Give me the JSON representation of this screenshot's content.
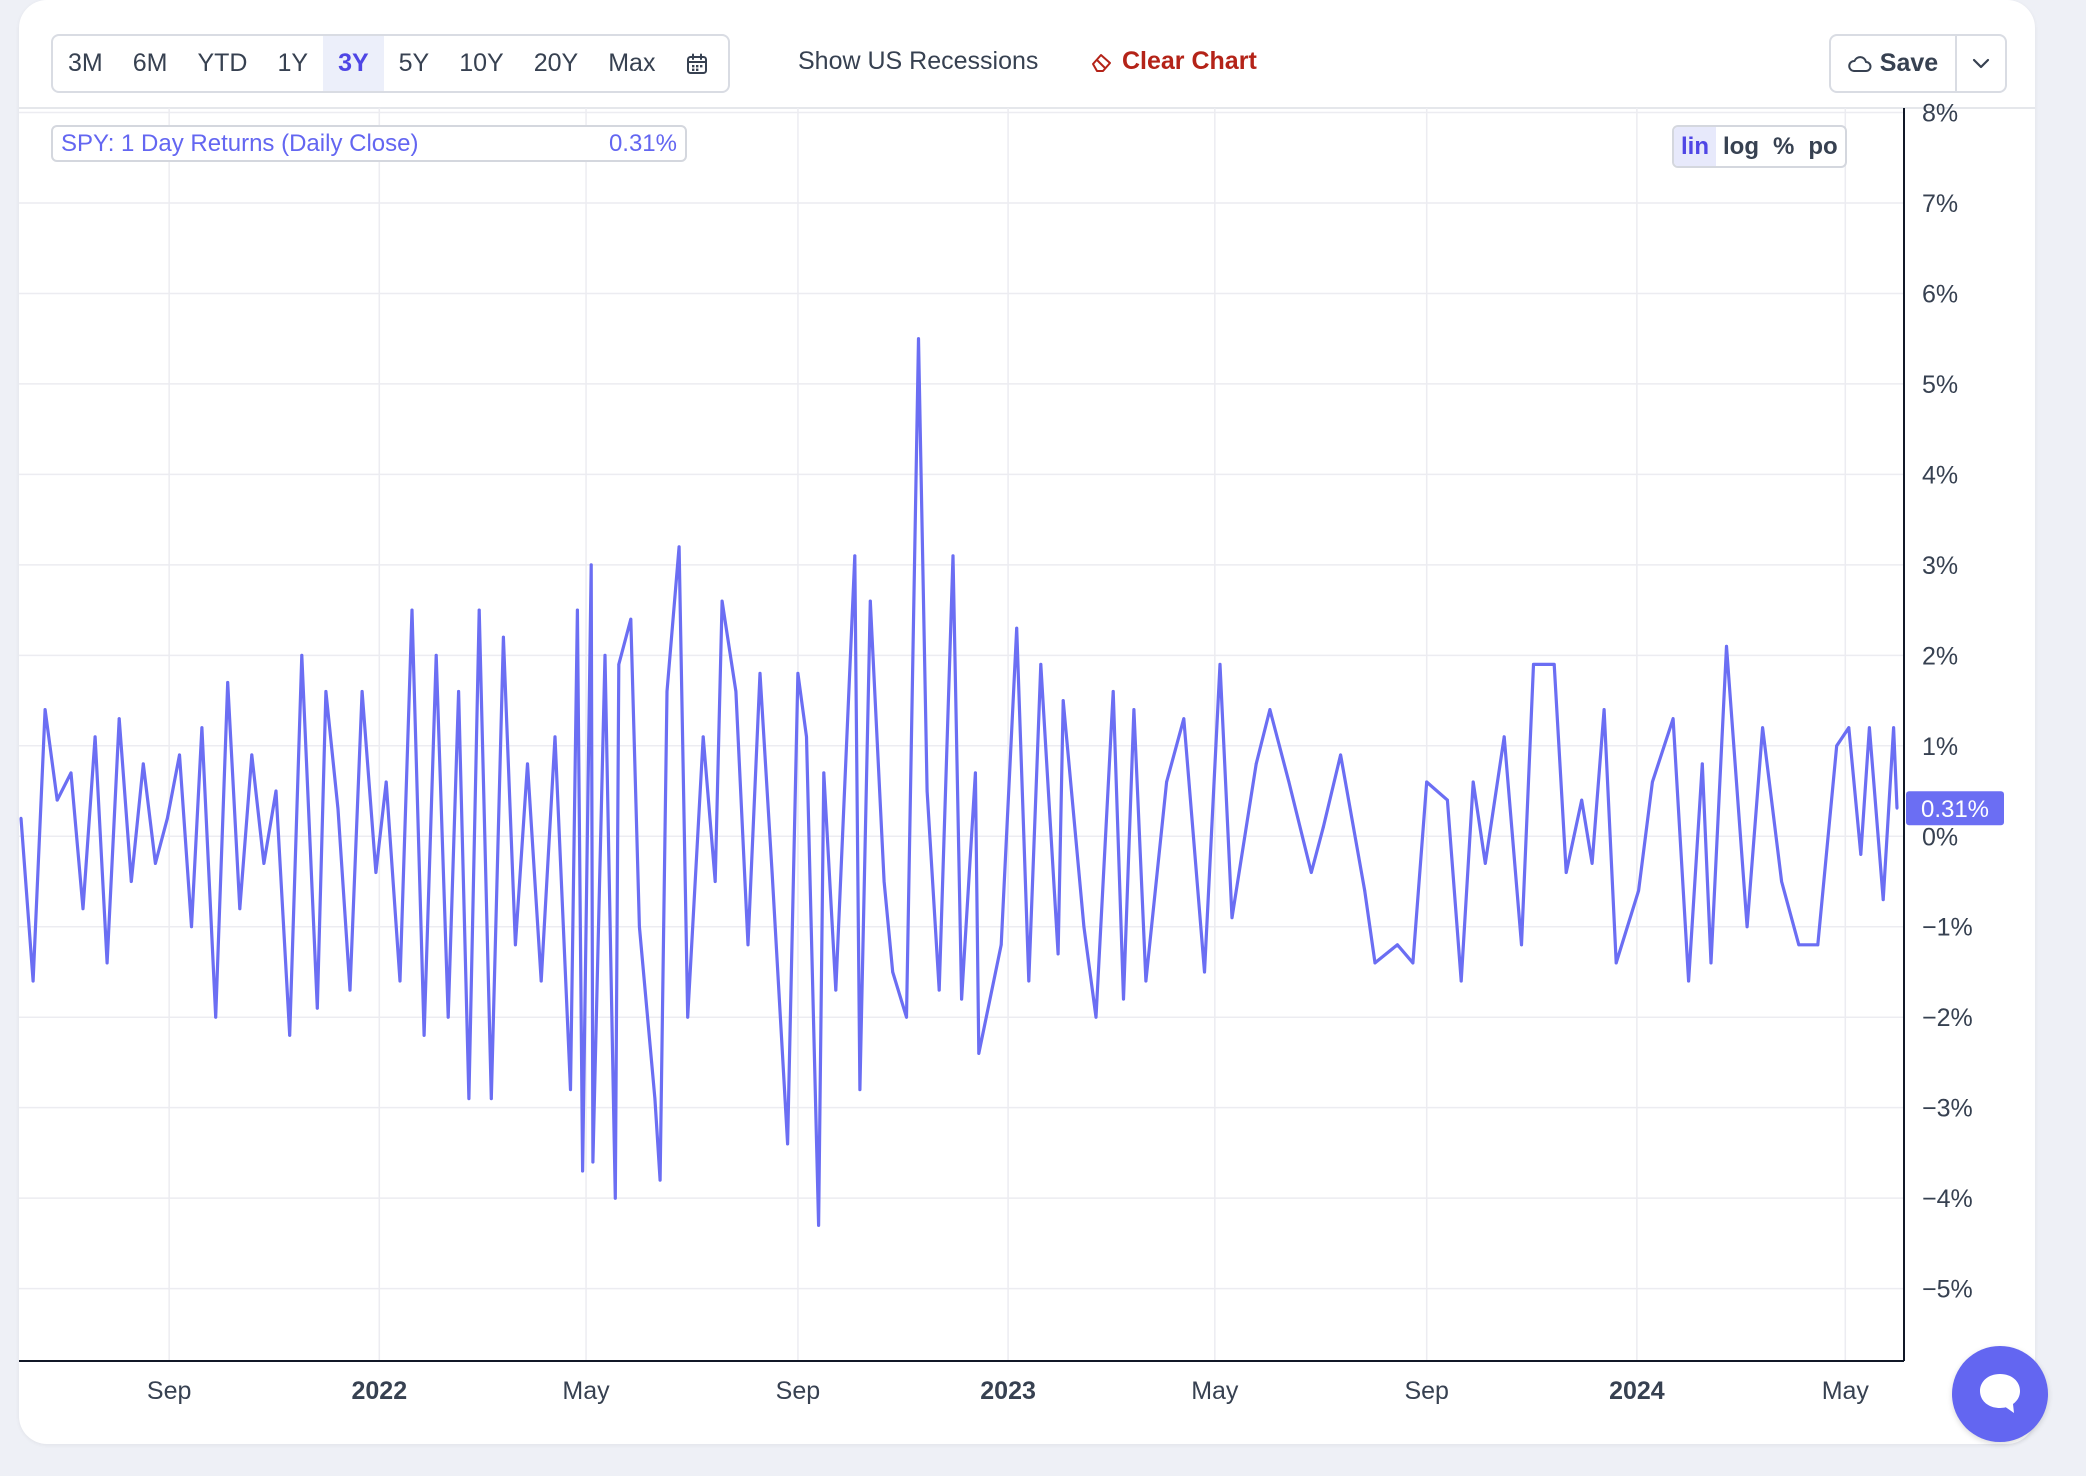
{
  "toolbar": {
    "ranges": [
      "3M",
      "6M",
      "YTD",
      "1Y",
      "3Y",
      "5Y",
      "10Y",
      "20Y",
      "Max"
    ],
    "active_range": "3Y",
    "show_recessions_label": "Show US Recessions",
    "clear_chart_label": "Clear Chart",
    "save_label": "Save",
    "clear_color": "#b42318"
  },
  "legend": {
    "series_label": "SPY: 1 Day Returns (Daily Close)",
    "current_value": "0.31%"
  },
  "scale_options": [
    "lin",
    "log",
    "%",
    "po"
  ],
  "active_scale": "lin",
  "colors": {
    "series": "#6b6ef3",
    "accent": "#4f46e5",
    "grid": "#ececf1"
  },
  "icons": {
    "calendar": "calendar-icon",
    "eraser": "eraser-icon",
    "save": "cloud-icon",
    "dropdown": "chevron-down-icon",
    "chat": "chat-bubble-icon"
  },
  "chart_data": {
    "type": "line",
    "x_axis_type": "date",
    "x_ticks": [
      {
        "date": "2021-09-01",
        "label": "Sep",
        "bold": false
      },
      {
        "date": "2022-01-01",
        "label": "2022",
        "bold": true
      },
      {
        "date": "2022-05-01",
        "label": "May",
        "bold": false
      },
      {
        "date": "2022-09-01",
        "label": "Sep",
        "bold": false
      },
      {
        "date": "2023-01-01",
        "label": "2023",
        "bold": true
      },
      {
        "date": "2023-05-01",
        "label": "May",
        "bold": false
      },
      {
        "date": "2023-09-01",
        "label": "Sep",
        "bold": false
      },
      {
        "date": "2024-01-01",
        "label": "2024",
        "bold": true
      },
      {
        "date": "2024-05-01",
        "label": "May",
        "bold": false
      }
    ],
    "x_range": [
      "2021-06-07",
      "2024-05-31"
    ],
    "y_ticks": [
      {
        "value": 8,
        "label": "8%"
      },
      {
        "value": 7,
        "label": "7%"
      },
      {
        "value": 6,
        "label": "6%"
      },
      {
        "value": 5,
        "label": "5%"
      },
      {
        "value": 4,
        "label": "4%"
      },
      {
        "value": 3,
        "label": "3%"
      },
      {
        "value": 2,
        "label": "2%"
      },
      {
        "value": 1,
        "label": "1%"
      },
      {
        "value": 0,
        "label": "0%"
      },
      {
        "value": -1,
        "label": "−1%"
      },
      {
        "value": -2,
        "label": "−2%"
      },
      {
        "value": -3,
        "label": "−3%"
      },
      {
        "value": -4,
        "label": "−4%"
      },
      {
        "value": -5,
        "label": "−5%"
      }
    ],
    "ylim": [
      -5.8,
      8.05
    ],
    "last_value_label": "0.31%",
    "series": [
      {
        "name": "SPY: 1 Day Returns (Daily Close)",
        "color": "#6b6ef3",
        "points": [
          [
            "2021-06-07",
            0.2
          ],
          [
            "2021-06-14",
            -1.6
          ],
          [
            "2021-06-21",
            1.4
          ],
          [
            "2021-06-28",
            0.4
          ],
          [
            "2021-07-06",
            0.7
          ],
          [
            "2021-07-13",
            -0.8
          ],
          [
            "2021-07-20",
            1.1
          ],
          [
            "2021-07-27",
            -1.4
          ],
          [
            "2021-08-03",
            1.3
          ],
          [
            "2021-08-10",
            -0.5
          ],
          [
            "2021-08-17",
            0.8
          ],
          [
            "2021-08-24",
            -0.3
          ],
          [
            "2021-08-31",
            0.2
          ],
          [
            "2021-09-07",
            0.9
          ],
          [
            "2021-09-14",
            -1.0
          ],
          [
            "2021-09-20",
            1.2
          ],
          [
            "2021-09-28",
            -2.0
          ],
          [
            "2021-10-05",
            1.7
          ],
          [
            "2021-10-12",
            -0.8
          ],
          [
            "2021-10-19",
            0.9
          ],
          [
            "2021-10-26",
            -0.3
          ],
          [
            "2021-11-02",
            0.5
          ],
          [
            "2021-11-10",
            -2.2
          ],
          [
            "2021-11-17",
            2.0
          ],
          [
            "2021-11-26",
            -1.9
          ],
          [
            "2021-12-01",
            1.6
          ],
          [
            "2021-12-08",
            0.3
          ],
          [
            "2021-12-15",
            -1.7
          ],
          [
            "2021-12-22",
            1.6
          ],
          [
            "2021-12-30",
            -0.4
          ],
          [
            "2022-01-05",
            0.6
          ],
          [
            "2022-01-13",
            -1.6
          ],
          [
            "2022-01-20",
            2.5
          ],
          [
            "2022-01-27",
            -2.2
          ],
          [
            "2022-02-03",
            2.0
          ],
          [
            "2022-02-10",
            -2.0
          ],
          [
            "2022-02-16",
            1.6
          ],
          [
            "2022-02-22",
            -2.9
          ],
          [
            "2022-02-28",
            2.5
          ],
          [
            "2022-03-07",
            -2.9
          ],
          [
            "2022-03-14",
            2.2
          ],
          [
            "2022-03-21",
            -1.2
          ],
          [
            "2022-03-28",
            0.8
          ],
          [
            "2022-04-05",
            -1.6
          ],
          [
            "2022-04-13",
            1.1
          ],
          [
            "2022-04-22",
            -2.8
          ],
          [
            "2022-04-26",
            2.5
          ],
          [
            "2022-04-29",
            -3.7
          ],
          [
            "2022-05-04",
            3.0
          ],
          [
            "2022-05-05",
            -3.6
          ],
          [
            "2022-05-12",
            2.0
          ],
          [
            "2022-05-18",
            -4.0
          ],
          [
            "2022-05-20",
            1.9
          ],
          [
            "2022-05-27",
            2.4
          ],
          [
            "2022-06-01",
            -1.0
          ],
          [
            "2022-06-10",
            -2.9
          ],
          [
            "2022-06-13",
            -3.8
          ],
          [
            "2022-06-17",
            1.6
          ],
          [
            "2022-06-24",
            3.2
          ],
          [
            "2022-06-29",
            -2.0
          ],
          [
            "2022-07-08",
            1.1
          ],
          [
            "2022-07-15",
            -0.5
          ],
          [
            "2022-07-19",
            2.6
          ],
          [
            "2022-07-27",
            1.6
          ],
          [
            "2022-08-03",
            -1.2
          ],
          [
            "2022-08-10",
            1.8
          ],
          [
            "2022-08-17",
            -0.4
          ],
          [
            "2022-08-26",
            -3.4
          ],
          [
            "2022-09-01",
            1.8
          ],
          [
            "2022-09-06",
            1.1
          ],
          [
            "2022-09-13",
            -4.3
          ],
          [
            "2022-09-16",
            0.7
          ],
          [
            "2022-09-23",
            -1.7
          ],
          [
            "2022-10-04",
            3.1
          ],
          [
            "2022-10-07",
            -2.8
          ],
          [
            "2022-10-13",
            2.6
          ],
          [
            "2022-10-21",
            -0.5
          ],
          [
            "2022-10-26",
            -1.5
          ],
          [
            "2022-11-03",
            -2.0
          ],
          [
            "2022-11-10",
            5.5
          ],
          [
            "2022-11-15",
            0.5
          ],
          [
            "2022-11-22",
            -1.7
          ],
          [
            "2022-11-30",
            3.1
          ],
          [
            "2022-12-05",
            -1.8
          ],
          [
            "2022-12-13",
            0.7
          ],
          [
            "2022-12-15",
            -2.4
          ],
          [
            "2022-12-28",
            -1.2
          ],
          [
            "2023-01-06",
            2.3
          ],
          [
            "2023-01-13",
            -1.6
          ],
          [
            "2023-01-20",
            1.9
          ],
          [
            "2023-01-30",
            -1.3
          ],
          [
            "2023-02-02",
            1.5
          ],
          [
            "2023-02-14",
            -1.0
          ],
          [
            "2023-02-21",
            -2.0
          ],
          [
            "2023-03-03",
            1.6
          ],
          [
            "2023-03-09",
            -1.8
          ],
          [
            "2023-03-15",
            1.4
          ],
          [
            "2023-03-22",
            -1.6
          ],
          [
            "2023-04-03",
            0.6
          ],
          [
            "2023-04-13",
            1.3
          ],
          [
            "2023-04-25",
            -1.5
          ],
          [
            "2023-05-04",
            1.9
          ],
          [
            "2023-05-11",
            -0.9
          ],
          [
            "2023-05-25",
            0.8
          ],
          [
            "2023-06-02",
            1.4
          ],
          [
            "2023-06-13",
            0.6
          ],
          [
            "2023-06-26",
            -0.4
          ],
          [
            "2023-07-03",
            0.1
          ],
          [
            "2023-07-13",
            0.9
          ],
          [
            "2023-07-27",
            -0.6
          ],
          [
            "2023-08-02",
            -1.4
          ],
          [
            "2023-08-15",
            -1.2
          ],
          [
            "2023-08-24",
            -1.4
          ],
          [
            "2023-09-01",
            0.6
          ],
          [
            "2023-09-13",
            0.4
          ],
          [
            "2023-09-21",
            -1.6
          ],
          [
            "2023-09-28",
            0.6
          ],
          [
            "2023-10-05",
            -0.3
          ],
          [
            "2023-10-16",
            1.1
          ],
          [
            "2023-10-26",
            -1.2
          ],
          [
            "2023-11-02",
            1.9
          ],
          [
            "2023-11-14",
            1.9
          ],
          [
            "2023-11-21",
            -0.4
          ],
          [
            "2023-11-30",
            0.4
          ],
          [
            "2023-12-06",
            -0.3
          ],
          [
            "2023-12-13",
            1.4
          ],
          [
            "2023-12-20",
            -1.4
          ],
          [
            "2024-01-02",
            -0.6
          ],
          [
            "2024-01-10",
            0.6
          ],
          [
            "2024-01-22",
            1.3
          ],
          [
            "2024-01-31",
            -1.6
          ],
          [
            "2024-02-08",
            0.8
          ],
          [
            "2024-02-13",
            -1.4
          ],
          [
            "2024-02-22",
            2.1
          ],
          [
            "2024-03-05",
            -1.0
          ],
          [
            "2024-03-14",
            1.2
          ],
          [
            "2024-03-25",
            -0.5
          ],
          [
            "2024-04-04",
            -1.2
          ],
          [
            "2024-04-15",
            -1.2
          ],
          [
            "2024-04-26",
            1.0
          ],
          [
            "2024-05-03",
            1.2
          ],
          [
            "2024-05-10",
            -0.2
          ],
          [
            "2024-05-15",
            1.2
          ],
          [
            "2024-05-23",
            -0.7
          ],
          [
            "2024-05-29",
            1.2
          ],
          [
            "2024-05-31",
            0.31
          ]
        ]
      }
    ]
  }
}
